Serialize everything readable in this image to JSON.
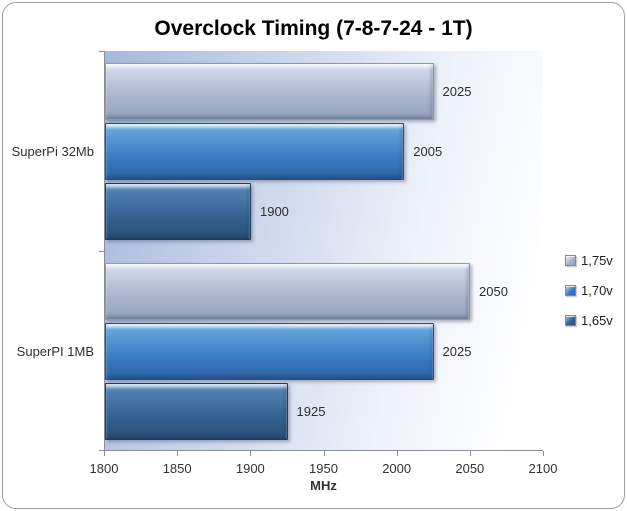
{
  "title": "Overclock Timing (7-8-7-24 - 1T)",
  "chart_data": {
    "type": "bar",
    "orientation": "horizontal",
    "title": "Overclock Timing (7-8-7-24 - 1T)",
    "categories": [
      "SuperPi 32Mb",
      "SuperPI 1MB"
    ],
    "series": [
      {
        "name": "1,75v",
        "values": [
          2025,
          2050
        ],
        "colors": {
          "light": "#eff4fb",
          "hi": "#ccd6e8",
          "mid": "#a9b5cd",
          "dark": "#93a1bd",
          "edge": "#8b99b4"
        }
      },
      {
        "name": "1,70v",
        "values": [
          2005,
          2025
        ],
        "colors": {
          "light": "#bedbf3",
          "hi": "#63a2dc",
          "mid": "#3a7cc4",
          "dark": "#2c62a2",
          "edge": "#24507f"
        }
      },
      {
        "name": "1,65v",
        "values": [
          1900,
          1925
        ],
        "colors": {
          "light": "#a4c4e2",
          "hi": "#4f80b2",
          "mid": "#356190",
          "dark": "#2a4f78",
          "edge": "#1f3c5c"
        }
      }
    ],
    "xlabel": "MHz",
    "ylabel": "",
    "xlim": [
      1800,
      2100
    ],
    "x_ticks": [
      1800,
      1850,
      1900,
      1950,
      2000,
      2050,
      2100
    ],
    "legend_position": "right",
    "grid": false,
    "plot_background": {
      "from": "#a6b8dc",
      "to": "#ffffff"
    }
  }
}
